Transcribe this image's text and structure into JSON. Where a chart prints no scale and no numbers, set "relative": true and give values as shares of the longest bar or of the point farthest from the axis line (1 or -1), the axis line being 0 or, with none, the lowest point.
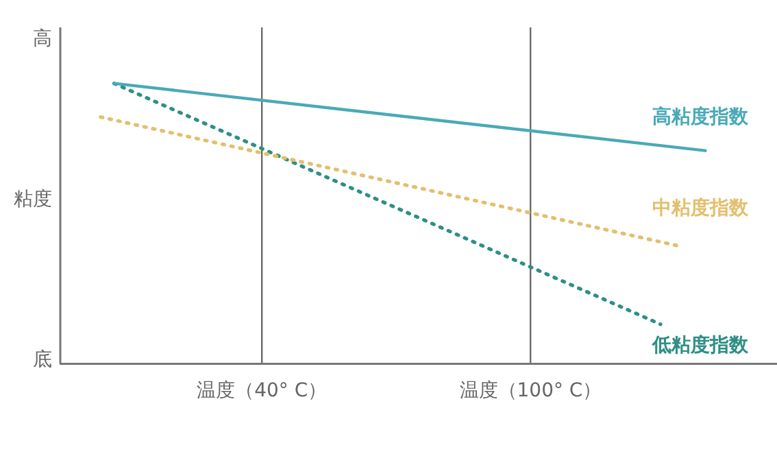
{
  "chart_data": {
    "type": "line",
    "relative": true,
    "xlim": [
      -5,
      155
    ],
    "xticks": [
      {
        "value": 40,
        "label": "温度（40° C）"
      },
      {
        "value": 100,
        "label": "温度（100° C）"
      }
    ],
    "annotations": [
      "高",
      "粘度",
      "底"
    ],
    "grid": "x",
    "legend": false,
    "marker": "none",
    "series": [
      {
        "name": "高粘度指数",
        "color": "#4aa9b8",
        "line_style": "solid",
        "x": [
          7,
          139
        ],
        "values": [
          1,
          0.76
        ]
      },
      {
        "name": "中粘度指数",
        "color": "#e3bf6e",
        "line_style": "dotted",
        "x": [
          4,
          133
        ],
        "values": [
          0.88,
          0.42
        ]
      },
      {
        "name": "低粘度指数",
        "color": "#2e8f86",
        "line_style": "dotted",
        "x": [
          7,
          129
        ],
        "values": [
          1,
          0.14
        ]
      }
    ]
  }
}
